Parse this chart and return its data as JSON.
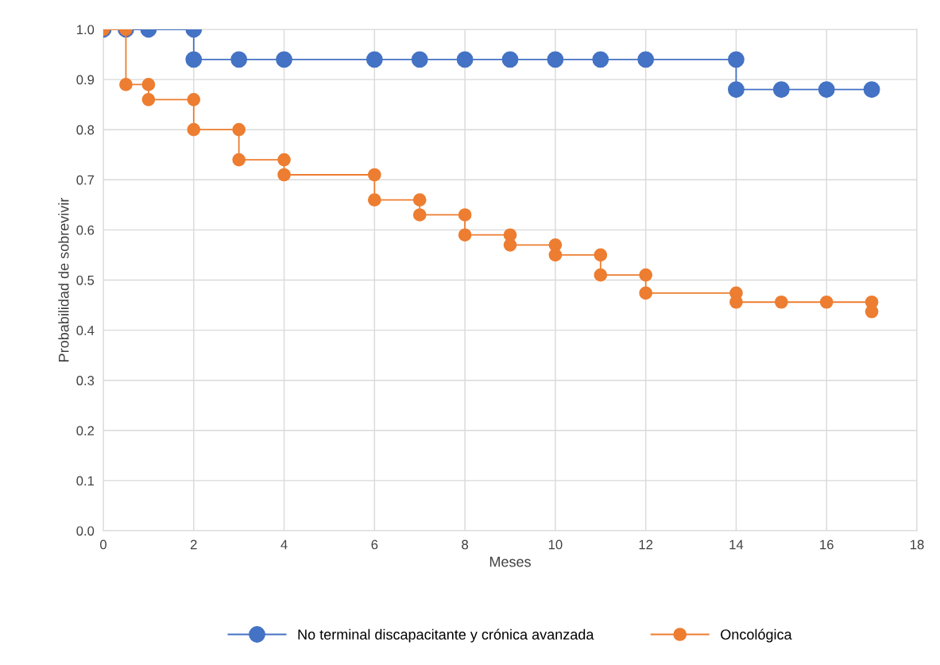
{
  "chart_data": {
    "type": "line",
    "xlabel": "Meses",
    "ylabel": "Probabilidad de sobrevivir",
    "xlim": [
      0,
      18
    ],
    "xticks": [
      0,
      2,
      4,
      6,
      8,
      10,
      12,
      14,
      16,
      18
    ],
    "ylim": [
      0,
      1
    ],
    "yticks": [
      {
        "value": 0,
        "label": "0.0"
      },
      {
        "value": 0.1,
        "label": "0.1"
      },
      {
        "value": 0.2,
        "label": "0.2"
      },
      {
        "value": 0.3,
        "label": "0.3"
      },
      {
        "value": 0.4,
        "label": "0.4"
      },
      {
        "value": 0.5,
        "label": "0.5"
      },
      {
        "value": 0.6,
        "label": "0.6"
      },
      {
        "value": 0.7,
        "label": "0.7"
      },
      {
        "value": 0.8,
        "label": "0.8"
      },
      {
        "value": 0.9,
        "label": "0.9"
      },
      {
        "value": 1,
        "label": "1.0"
      }
    ],
    "grid": true,
    "legend": "bottom",
    "marker": "circle",
    "line_style": "solid",
    "series": [
      {
        "name": "No terminal discapacitante y crónica avanzada",
        "color": "#4472c4",
        "x": [
          0,
          0.5,
          1,
          2,
          2,
          3,
          4,
          6,
          7,
          8,
          9,
          10,
          11,
          12,
          14,
          14,
          15,
          16,
          17
        ],
        "values": [
          1,
          1,
          1,
          1,
          0.94,
          0.94,
          0.94,
          0.94,
          0.94,
          0.94,
          0.94,
          0.94,
          0.94,
          0.94,
          0.94,
          0.88,
          0.88,
          0.88,
          0.88
        ]
      },
      {
        "name": "Oncológica",
        "color": "#ed7d31",
        "x": [
          0,
          0.5,
          0.5,
          1,
          1,
          2,
          2,
          3,
          3,
          4,
          4,
          6,
          6,
          7,
          7,
          8,
          8,
          9,
          9,
          10,
          10,
          11,
          11,
          12,
          12,
          14,
          14,
          15,
          16,
          17,
          17
        ],
        "values": [
          1,
          1,
          0.89,
          0.89,
          0.86,
          0.86,
          0.8,
          0.8,
          0.74,
          0.74,
          0.71,
          0.71,
          0.66,
          0.66,
          0.63,
          0.63,
          0.59,
          0.59,
          0.57,
          0.57,
          0.55,
          0.55,
          0.51,
          0.51,
          0.474,
          0.474,
          0.456,
          0.456,
          0.456,
          0.456,
          0.437
        ]
      }
    ]
  }
}
